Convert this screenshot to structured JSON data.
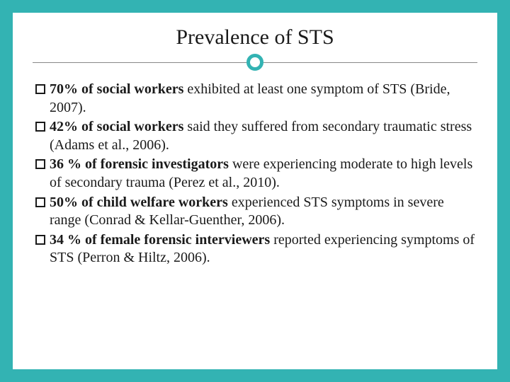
{
  "colors": {
    "accent": "#33b3b3",
    "background": "#ffffff",
    "text": "#1a1a1a",
    "divider": "#888888"
  },
  "typography": {
    "title_fontsize": 30,
    "body_fontsize": 20,
    "font_family": "Georgia, serif"
  },
  "title": "Prevalence of STS",
  "bullets": [
    {
      "bold": "70% of social workers",
      "rest": " exhibited at least one symptom of STS (Bride, 2007)."
    },
    {
      "bold": "42% of social workers",
      "rest": " said they suffered from secondary traumatic stress (Adams et al., 2006)."
    },
    {
      "bold": "36 % of forensic investigators",
      "rest": " were experiencing moderate to high levels of secondary trauma (Perez et al., 2010)."
    },
    {
      "bold": "50% of child welfare workers",
      "rest": " experienced STS symptoms in severe range (Conrad & Kellar-Guenther, 2006)."
    },
    {
      "bold": "34 % of female forensic interviewers",
      "rest": " reported experiencing symptoms of STS (Perron & Hiltz, 2006)."
    }
  ]
}
